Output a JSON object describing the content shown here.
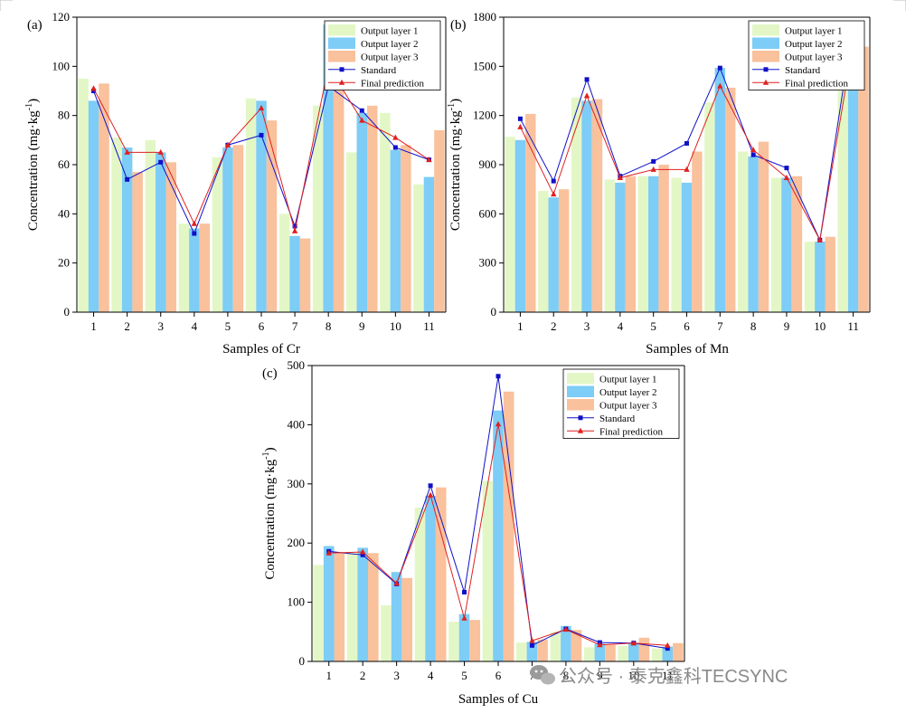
{
  "colors": {
    "layer1": "#e3f7c6",
    "layer2": "#7dcdf6",
    "layer3": "#f9c19c",
    "standard": "#1010c8",
    "final": "#e02020"
  },
  "watermark": "公众号 · 泰克鑫科TECSYNC",
  "watermark_icon": "wechat-icon",
  "chart_data": [
    {
      "panel": "(a)",
      "type": "bar",
      "xlabel": "Samples of Cr",
      "ylabel": "Concentration (mg·kg-1)",
      "ylabel_main": "Concentration (mg·kg",
      "ylabel_sup": "-1",
      "ylabel_close": ")",
      "ylim": [
        0,
        120
      ],
      "yticks": [
        0,
        20,
        40,
        60,
        80,
        100,
        120
      ],
      "yticks_labels": [
        "0",
        "20",
        "40",
        "60",
        "80",
        "100",
        "120"
      ],
      "categories": [
        "1",
        "2",
        "3",
        "4",
        "5",
        "6",
        "7",
        "8",
        "9",
        "10",
        "11"
      ],
      "legend_position": "top-right",
      "series": [
        {
          "name": "Output layer 1",
          "kind": "bar",
          "values": [
            95,
            71,
            70,
            36,
            63,
            87,
            40,
            84,
            65,
            81,
            52
          ]
        },
        {
          "name": "Output layer 2",
          "kind": "bar",
          "values": [
            86,
            67,
            65,
            34,
            67,
            86,
            31,
            117,
            81,
            66,
            55
          ]
        },
        {
          "name": "Output layer 3",
          "kind": "bar",
          "values": [
            93,
            57,
            61,
            36,
            68,
            78,
            30,
            99,
            84,
            68,
            74
          ]
        },
        {
          "name": "Standard",
          "kind": "line",
          "marker": "square",
          "values": [
            90,
            54,
            61,
            32,
            68,
            72,
            35,
            92,
            82,
            67,
            62
          ]
        },
        {
          "name": "Final prediction",
          "kind": "line",
          "marker": "triangle",
          "values": [
            91,
            65,
            65,
            36,
            68,
            83,
            33,
            100,
            78,
            71,
            62
          ]
        }
      ]
    },
    {
      "panel": "(b)",
      "type": "bar",
      "xlabel": "Samples of Mn",
      "ylabel": "Concentration (mg·kg-1)",
      "ylabel_main": "Concentration (mg·kg",
      "ylabel_sup": "-1",
      "ylabel_close": ")",
      "ylim": [
        0,
        1800
      ],
      "yticks": [
        0,
        300,
        600,
        900,
        1200,
        1500,
        1800
      ],
      "yticks_labels": [
        "0",
        "300",
        "600",
        "900",
        "1200",
        "1500",
        "1800"
      ],
      "categories": [
        "1",
        "2",
        "3",
        "4",
        "5",
        "6",
        "7",
        "8",
        "9",
        "10",
        "11"
      ],
      "legend_position": "top-right",
      "series": [
        {
          "name": "Output layer 1",
          "kind": "bar",
          "values": [
            1070,
            740,
            1310,
            810,
            830,
            820,
            1280,
            980,
            820,
            430,
            1590
          ]
        },
        {
          "name": "Output layer 2",
          "kind": "bar",
          "values": [
            1050,
            700,
            1290,
            790,
            830,
            790,
            1490,
            950,
            820,
            430,
            1700
          ]
        },
        {
          "name": "Output layer 3",
          "kind": "bar",
          "values": [
            1210,
            750,
            1300,
            830,
            900,
            980,
            1370,
            1040,
            830,
            460,
            1620
          ]
        },
        {
          "name": "Standard",
          "kind": "line",
          "marker": "square",
          "values": [
            1180,
            800,
            1420,
            830,
            920,
            1030,
            1490,
            960,
            880,
            440,
            1760
          ]
        },
        {
          "name": "Final prediction",
          "kind": "line",
          "marker": "triangle",
          "values": [
            1130,
            720,
            1320,
            820,
            870,
            870,
            1380,
            990,
            820,
            440,
            1640
          ]
        }
      ]
    },
    {
      "panel": "(c)",
      "type": "bar",
      "xlabel": "Samples of Cu",
      "ylabel": "Concentration (mg·kg-1)",
      "ylabel_main": "Concentration (mg·kg",
      "ylabel_sup": "-1",
      "ylabel_close": ")",
      "ylim": [
        0,
        500
      ],
      "yticks": [
        0,
        100,
        200,
        300,
        400,
        500
      ],
      "yticks_labels": [
        "0",
        "100",
        "200",
        "300",
        "400",
        "500"
      ],
      "categories": [
        "1",
        "2",
        "3",
        "4",
        "5",
        "6",
        "7",
        "8",
        "9",
        "10",
        "11"
      ],
      "legend_position": "top-right",
      "series": [
        {
          "name": "Output layer 1",
          "kind": "bar",
          "values": [
            163,
            185,
            95,
            260,
            67,
            305,
            32,
            50,
            24,
            26,
            22
          ]
        },
        {
          "name": "Output layer 2",
          "kind": "bar",
          "values": [
            195,
            192,
            151,
            280,
            80,
            424,
            33,
            60,
            30,
            30,
            25
          ]
        },
        {
          "name": "Output layer 3",
          "kind": "bar",
          "values": [
            183,
            183,
            141,
            294,
            70,
            456,
            37,
            53,
            28,
            40,
            31
          ]
        },
        {
          "name": "Standard",
          "kind": "line",
          "marker": "square",
          "values": [
            186,
            180,
            131,
            297,
            117,
            482,
            27,
            55,
            32,
            31,
            22
          ]
        },
        {
          "name": "Final prediction",
          "kind": "line",
          "marker": "triangle",
          "values": [
            183,
            185,
            132,
            281,
            73,
            401,
            35,
            54,
            28,
            31,
            27
          ]
        }
      ]
    }
  ]
}
